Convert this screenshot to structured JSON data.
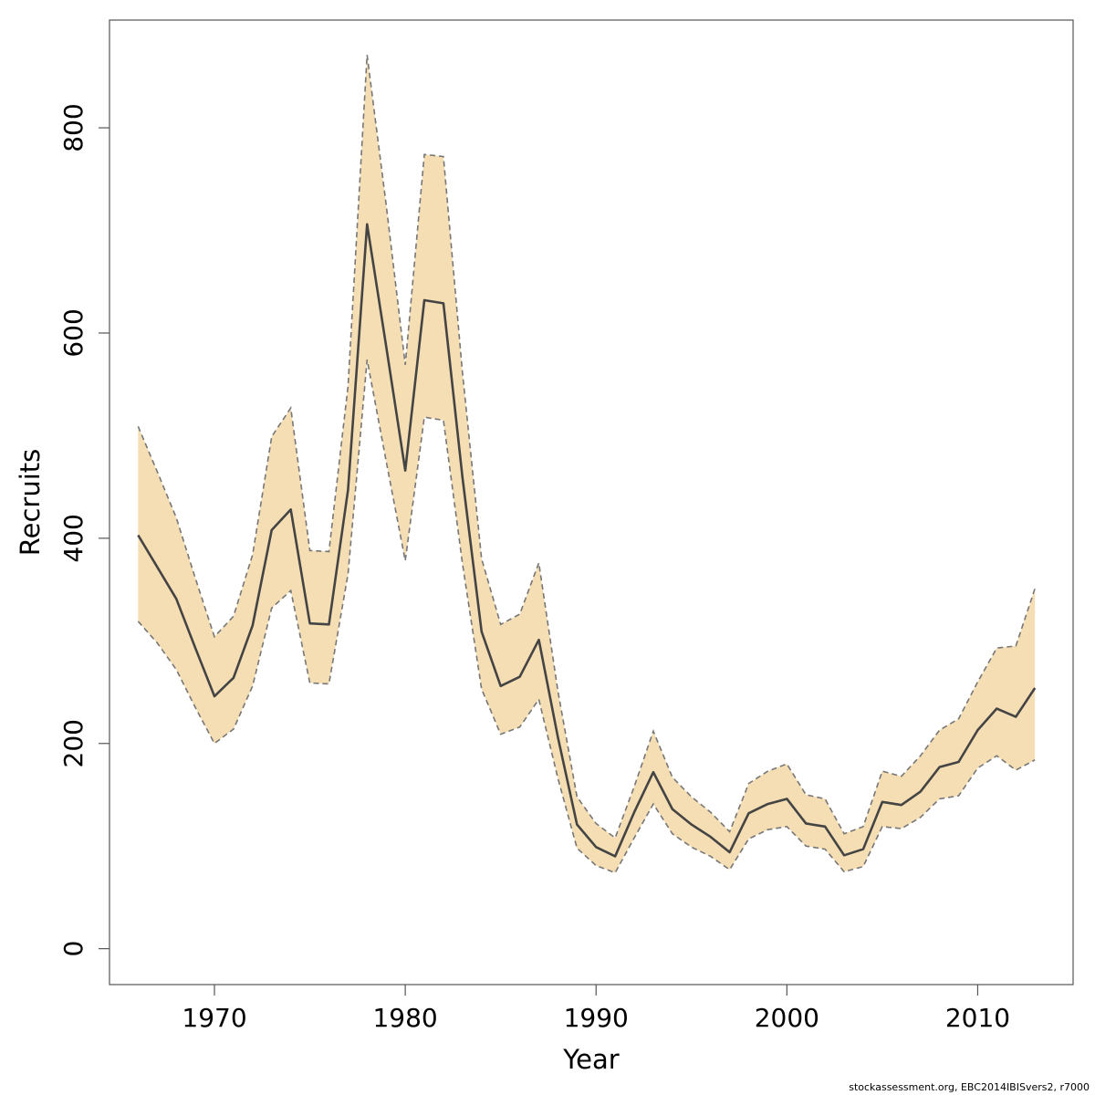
{
  "chart_data": {
    "type": "area",
    "xlabel": "Year",
    "ylabel": "Recruits",
    "xlim": [
      1964.5,
      2015
    ],
    "ylim": [
      -35,
      905
    ],
    "x_ticks": [
      1970,
      1980,
      1990,
      2000,
      2010
    ],
    "y_ticks": [
      0,
      200,
      400,
      600,
      800
    ],
    "grid": false,
    "legend": "none",
    "colors": {
      "band": "#f5deb3",
      "line": "#444444",
      "bound": "#777777",
      "frame": "#555555"
    },
    "x": [
      1966,
      1967,
      1968,
      1969,
      1970,
      1971,
      1972,
      1973,
      1974,
      1975,
      1976,
      1977,
      1978,
      1979,
      1980,
      1981,
      1982,
      1983,
      1984,
      1985,
      1986,
      1987,
      1988,
      1989,
      1990,
      1991,
      1992,
      1993,
      1994,
      1995,
      1996,
      1997,
      1998,
      1999,
      2000,
      2001,
      2002,
      2003,
      2004,
      2005,
      2006,
      2007,
      2008,
      2009,
      2010,
      2011,
      2012,
      2013
    ],
    "series": [
      {
        "values": [
          403,
          372,
          341,
          293,
          246,
          264,
          315,
          408,
          428,
          317,
          316,
          447,
          706,
          587,
          466,
          632,
          629,
          459,
          309,
          256,
          265,
          301,
          206,
          121,
          99,
          90,
          133,
          172,
          136,
          121,
          109,
          94,
          132,
          141,
          146,
          122,
          119,
          91,
          97,
          143,
          140,
          153,
          177,
          182,
          213,
          234,
          226,
          254
        ]
      }
    ],
    "band": {
      "upper": [
        509,
        465,
        420,
        361,
        304,
        324,
        384,
        499,
        527,
        388,
        387,
        548,
        871,
        725,
        569,
        774,
        772,
        561,
        380,
        316,
        326,
        376,
        251,
        148,
        122,
        108,
        158,
        212,
        167,
        148,
        133,
        114,
        161,
        173,
        180,
        150,
        146,
        112,
        119,
        173,
        168,
        188,
        213,
        224,
        260,
        293,
        295,
        351
      ],
      "lower": [
        319,
        298,
        272,
        235,
        200,
        214,
        256,
        332,
        349,
        259,
        258,
        365,
        574,
        475,
        378,
        518,
        515,
        375,
        253,
        209,
        216,
        243,
        166,
        98,
        81,
        74,
        108,
        141,
        112,
        99,
        90,
        77,
        107,
        116,
        119,
        100,
        97,
        75,
        80,
        119,
        117,
        128,
        146,
        149,
        176,
        188,
        174,
        184
      ]
    }
  },
  "footer": {
    "credit": "stockassessment.org, EBC2014IBISvers2, r7000"
  }
}
